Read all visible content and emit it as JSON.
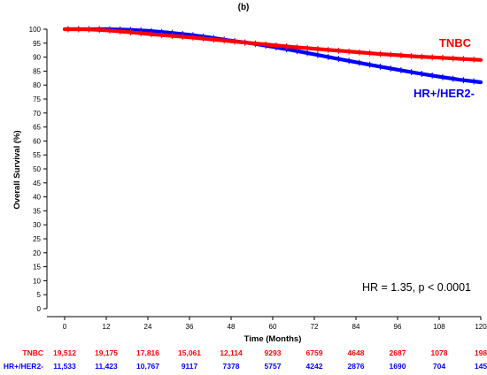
{
  "chart_data": {
    "type": "line",
    "panel_label": "(b)",
    "xlabel": "Time (Months)",
    "ylabel": "Overall Survival (%)",
    "xlim": [
      0,
      120
    ],
    "ylim": [
      0,
      100
    ],
    "x_ticks": [
      0,
      12,
      24,
      36,
      48,
      60,
      72,
      84,
      96,
      108,
      120
    ],
    "y_ticks": [
      0,
      5,
      10,
      15,
      20,
      25,
      30,
      35,
      40,
      45,
      50,
      55,
      60,
      65,
      70,
      75,
      80,
      85,
      90,
      95,
      100
    ],
    "grid": false,
    "series": [
      {
        "name": "TNBC",
        "color": "#ff0000",
        "x": [
          0,
          6,
          12,
          18,
          24,
          30,
          36,
          42,
          48,
          54,
          60,
          66,
          72,
          78,
          84,
          90,
          96,
          102,
          108,
          114,
          120
        ],
        "y": [
          100,
          100,
          99.6,
          99,
          98.3,
          97.7,
          97.1,
          96.4,
          95.7,
          95,
          94.3,
          93.6,
          93,
          92.4,
          91.8,
          91.2,
          90.7,
          90.2,
          89.8,
          89.4,
          89
        ]
      },
      {
        "name": "HR+/HER2-",
        "color": "#0000ff",
        "x": [
          0,
          6,
          12,
          18,
          24,
          30,
          36,
          42,
          48,
          54,
          60,
          66,
          72,
          78,
          84,
          90,
          96,
          102,
          108,
          114,
          120
        ],
        "y": [
          100,
          100,
          100,
          99.8,
          99.4,
          98.8,
          98,
          97,
          95.9,
          94.9,
          93.7,
          92.4,
          91,
          89.6,
          88.2,
          86.8,
          85.5,
          84.2,
          83,
          81.9,
          81
        ]
      }
    ],
    "annotation": "HR = 1.35, p < 0.0001",
    "risk_table": {
      "times": [
        0,
        12,
        24,
        36,
        48,
        60,
        72,
        84,
        96,
        108,
        120
      ],
      "rows": [
        {
          "label": "TNBC",
          "color": "#ff0000",
          "counts": [
            "19,512",
            "19,175",
            "17,816",
            "15,061",
            "12,114",
            "9293",
            "6759",
            "4648",
            "2687",
            "1078",
            "198"
          ]
        },
        {
          "label": "HR+/HER2-",
          "color": "#0000ff",
          "counts": [
            "11,533",
            "11,423",
            "10,767",
            "9117",
            "7378",
            "5757",
            "4242",
            "2876",
            "1690",
            "704",
            "145"
          ]
        }
      ]
    }
  }
}
